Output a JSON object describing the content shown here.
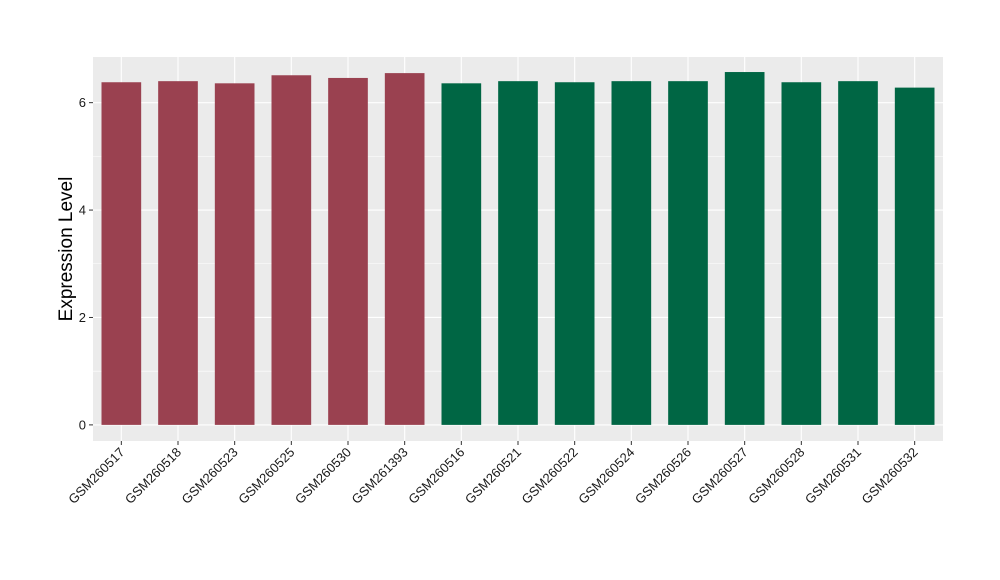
{
  "chart_data": {
    "type": "bar",
    "title": "",
    "xlabel": "",
    "ylabel": "Expression Level",
    "ylim": [
      -0.3,
      6.85
    ],
    "yticks": [
      0,
      2,
      4,
      6
    ],
    "grid": true,
    "legend": "none",
    "background": "#ebebeb",
    "gridline_color": "#ffffff",
    "categories": [
      "GSM260517",
      "GSM260518",
      "GSM260523",
      "GSM260525",
      "GSM260530",
      "GSM261393",
      "GSM260516",
      "GSM260521",
      "GSM260522",
      "GSM260524",
      "GSM260526",
      "GSM260527",
      "GSM260528",
      "GSM260531",
      "GSM260532"
    ],
    "values": [
      6.38,
      6.4,
      6.36,
      6.51,
      6.46,
      6.55,
      6.36,
      6.4,
      6.38,
      6.4,
      6.4,
      6.57,
      6.38,
      6.4,
      6.28
    ],
    "group_colors": [
      "#9a4150",
      "#9a4150",
      "#9a4150",
      "#9a4150",
      "#9a4150",
      "#9a4150",
      "#006644",
      "#006644",
      "#006644",
      "#006644",
      "#006644",
      "#006644",
      "#006644",
      "#006644",
      "#006644"
    ]
  }
}
